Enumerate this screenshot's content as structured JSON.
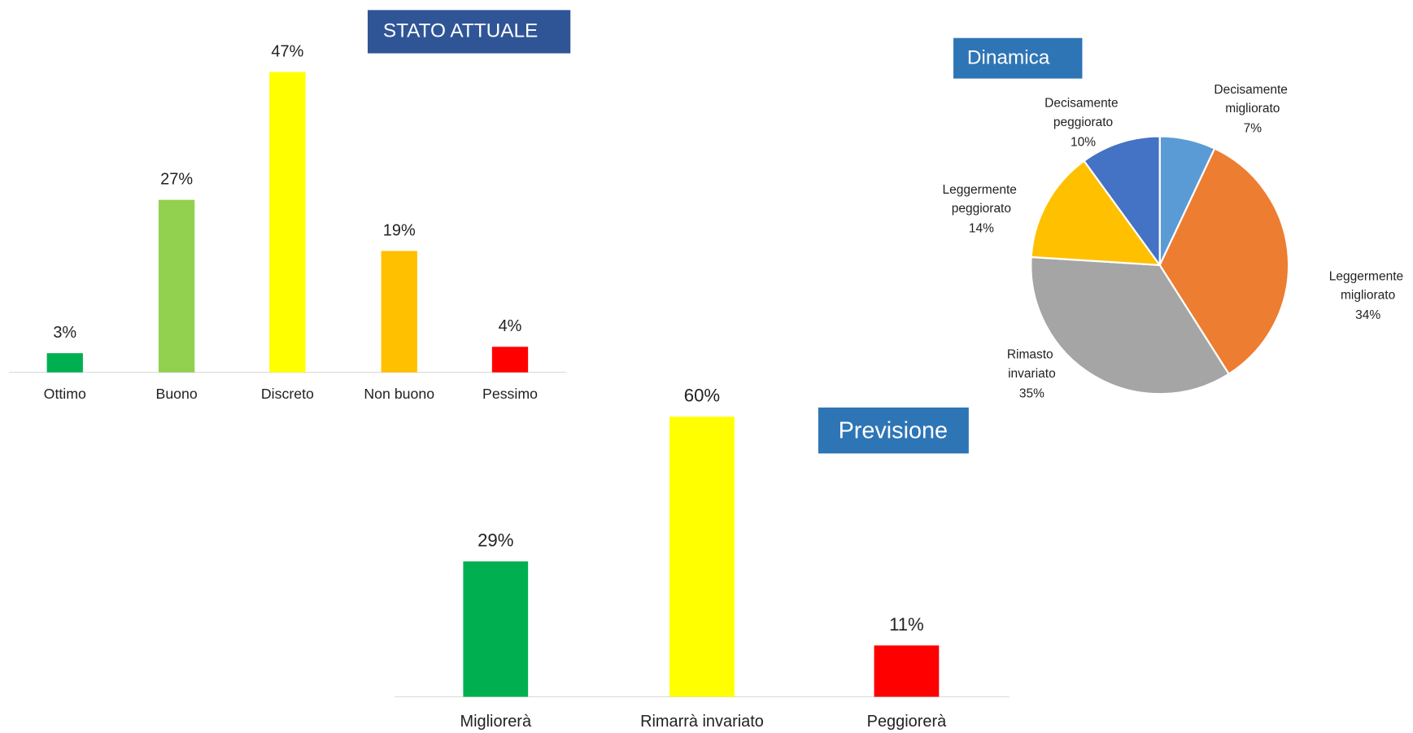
{
  "chart_data": [
    {
      "type": "bar",
      "title": "STATO ATTUALE",
      "categories": [
        "Ottimo",
        "Buono",
        "Discreto",
        "Non buono",
        "Pessimo"
      ],
      "values": [
        3,
        27,
        47,
        19,
        4
      ],
      "value_labels": [
        "3%",
        "27%",
        "47%",
        "19%",
        "4%"
      ],
      "colors": [
        "#00b050",
        "#92d050",
        "#ffff00",
        "#ffc000",
        "#ff0000"
      ]
    },
    {
      "type": "pie",
      "title": "Dinamica",
      "categories": [
        "Decisamente migliorato",
        "Leggermente migliorato",
        "Rimasto invariato",
        "Leggermente peggiorato",
        "Decisamente peggiorato"
      ],
      "values": [
        7,
        34,
        35,
        14,
        10
      ],
      "value_labels": [
        "7%",
        "34%",
        "35%",
        "14%",
        "10%"
      ],
      "colors": [
        "#5b9bd5",
        "#ed7d31",
        "#a5a5a5",
        "#ffc000",
        "#4472c4"
      ]
    },
    {
      "type": "bar",
      "title": "Previsione",
      "categories": [
        "Migliorerà",
        "Rimarrà invariato",
        "Peggiorerà"
      ],
      "values": [
        29,
        60,
        11
      ],
      "value_labels": [
        "29%",
        "60%",
        "11%"
      ],
      "colors": [
        "#00b050",
        "#ffff00",
        "#ff0000"
      ]
    }
  ]
}
